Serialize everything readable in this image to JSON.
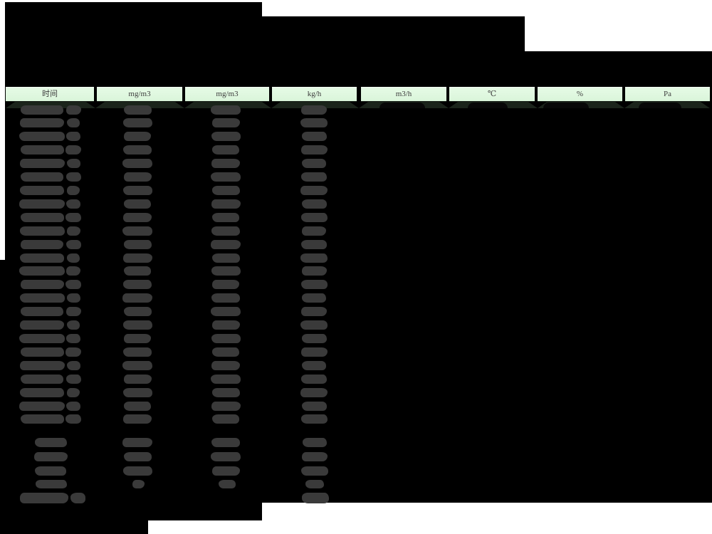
{
  "page": {
    "background": "#ffffff"
  },
  "table": {
    "unit_header": [
      "时间",
      "mg/m3",
      "mg/m3",
      "kg/h",
      "m3/h",
      "℃",
      "%",
      "Pa"
    ],
    "data_row_count": 24,
    "summary_row_count": 4,
    "footer_row_count": 1,
    "redacted": true
  },
  "colors": {
    "mask": "#000000",
    "header-bg": "#daf5da",
    "header-bg-top": "#e6fbe6",
    "header-text": "#3d3d3d",
    "first-row-strip": "#1b241b",
    "redacted-blob": "#3a3a3a",
    "redacted-blob-dark": "#070707"
  }
}
